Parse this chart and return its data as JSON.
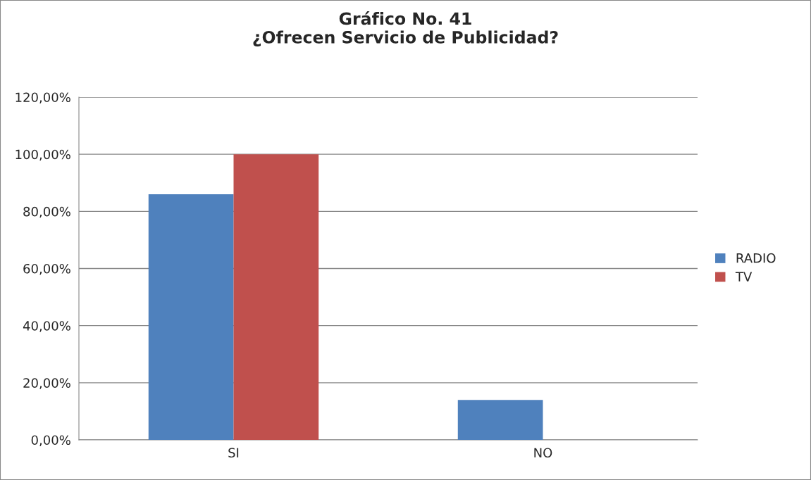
{
  "chart_data": {
    "type": "bar",
    "title": "Gráfico No. 41\n¿Ofrecen Servicio de Publicidad?",
    "categories": [
      "SI",
      "NO"
    ],
    "series": [
      {
        "name": "RADIO",
        "color": "#4f81bd",
        "values": [
          86,
          14
        ]
      },
      {
        "name": "TV",
        "color": "#c0504d",
        "values": [
          100,
          null
        ]
      }
    ],
    "ylim": [
      0,
      120
    ],
    "yticks": [
      {
        "value": 0,
        "label": "0,00%"
      },
      {
        "value": 20,
        "label": "20,00%"
      },
      {
        "value": 40,
        "label": "40,00%"
      },
      {
        "value": 60,
        "label": "60,00%"
      },
      {
        "value": 80,
        "label": "80,00%"
      },
      {
        "value": 100,
        "label": "100,00%"
      },
      {
        "value": 120,
        "label": "120,00%"
      }
    ],
    "grid": "y",
    "legend": "right"
  }
}
